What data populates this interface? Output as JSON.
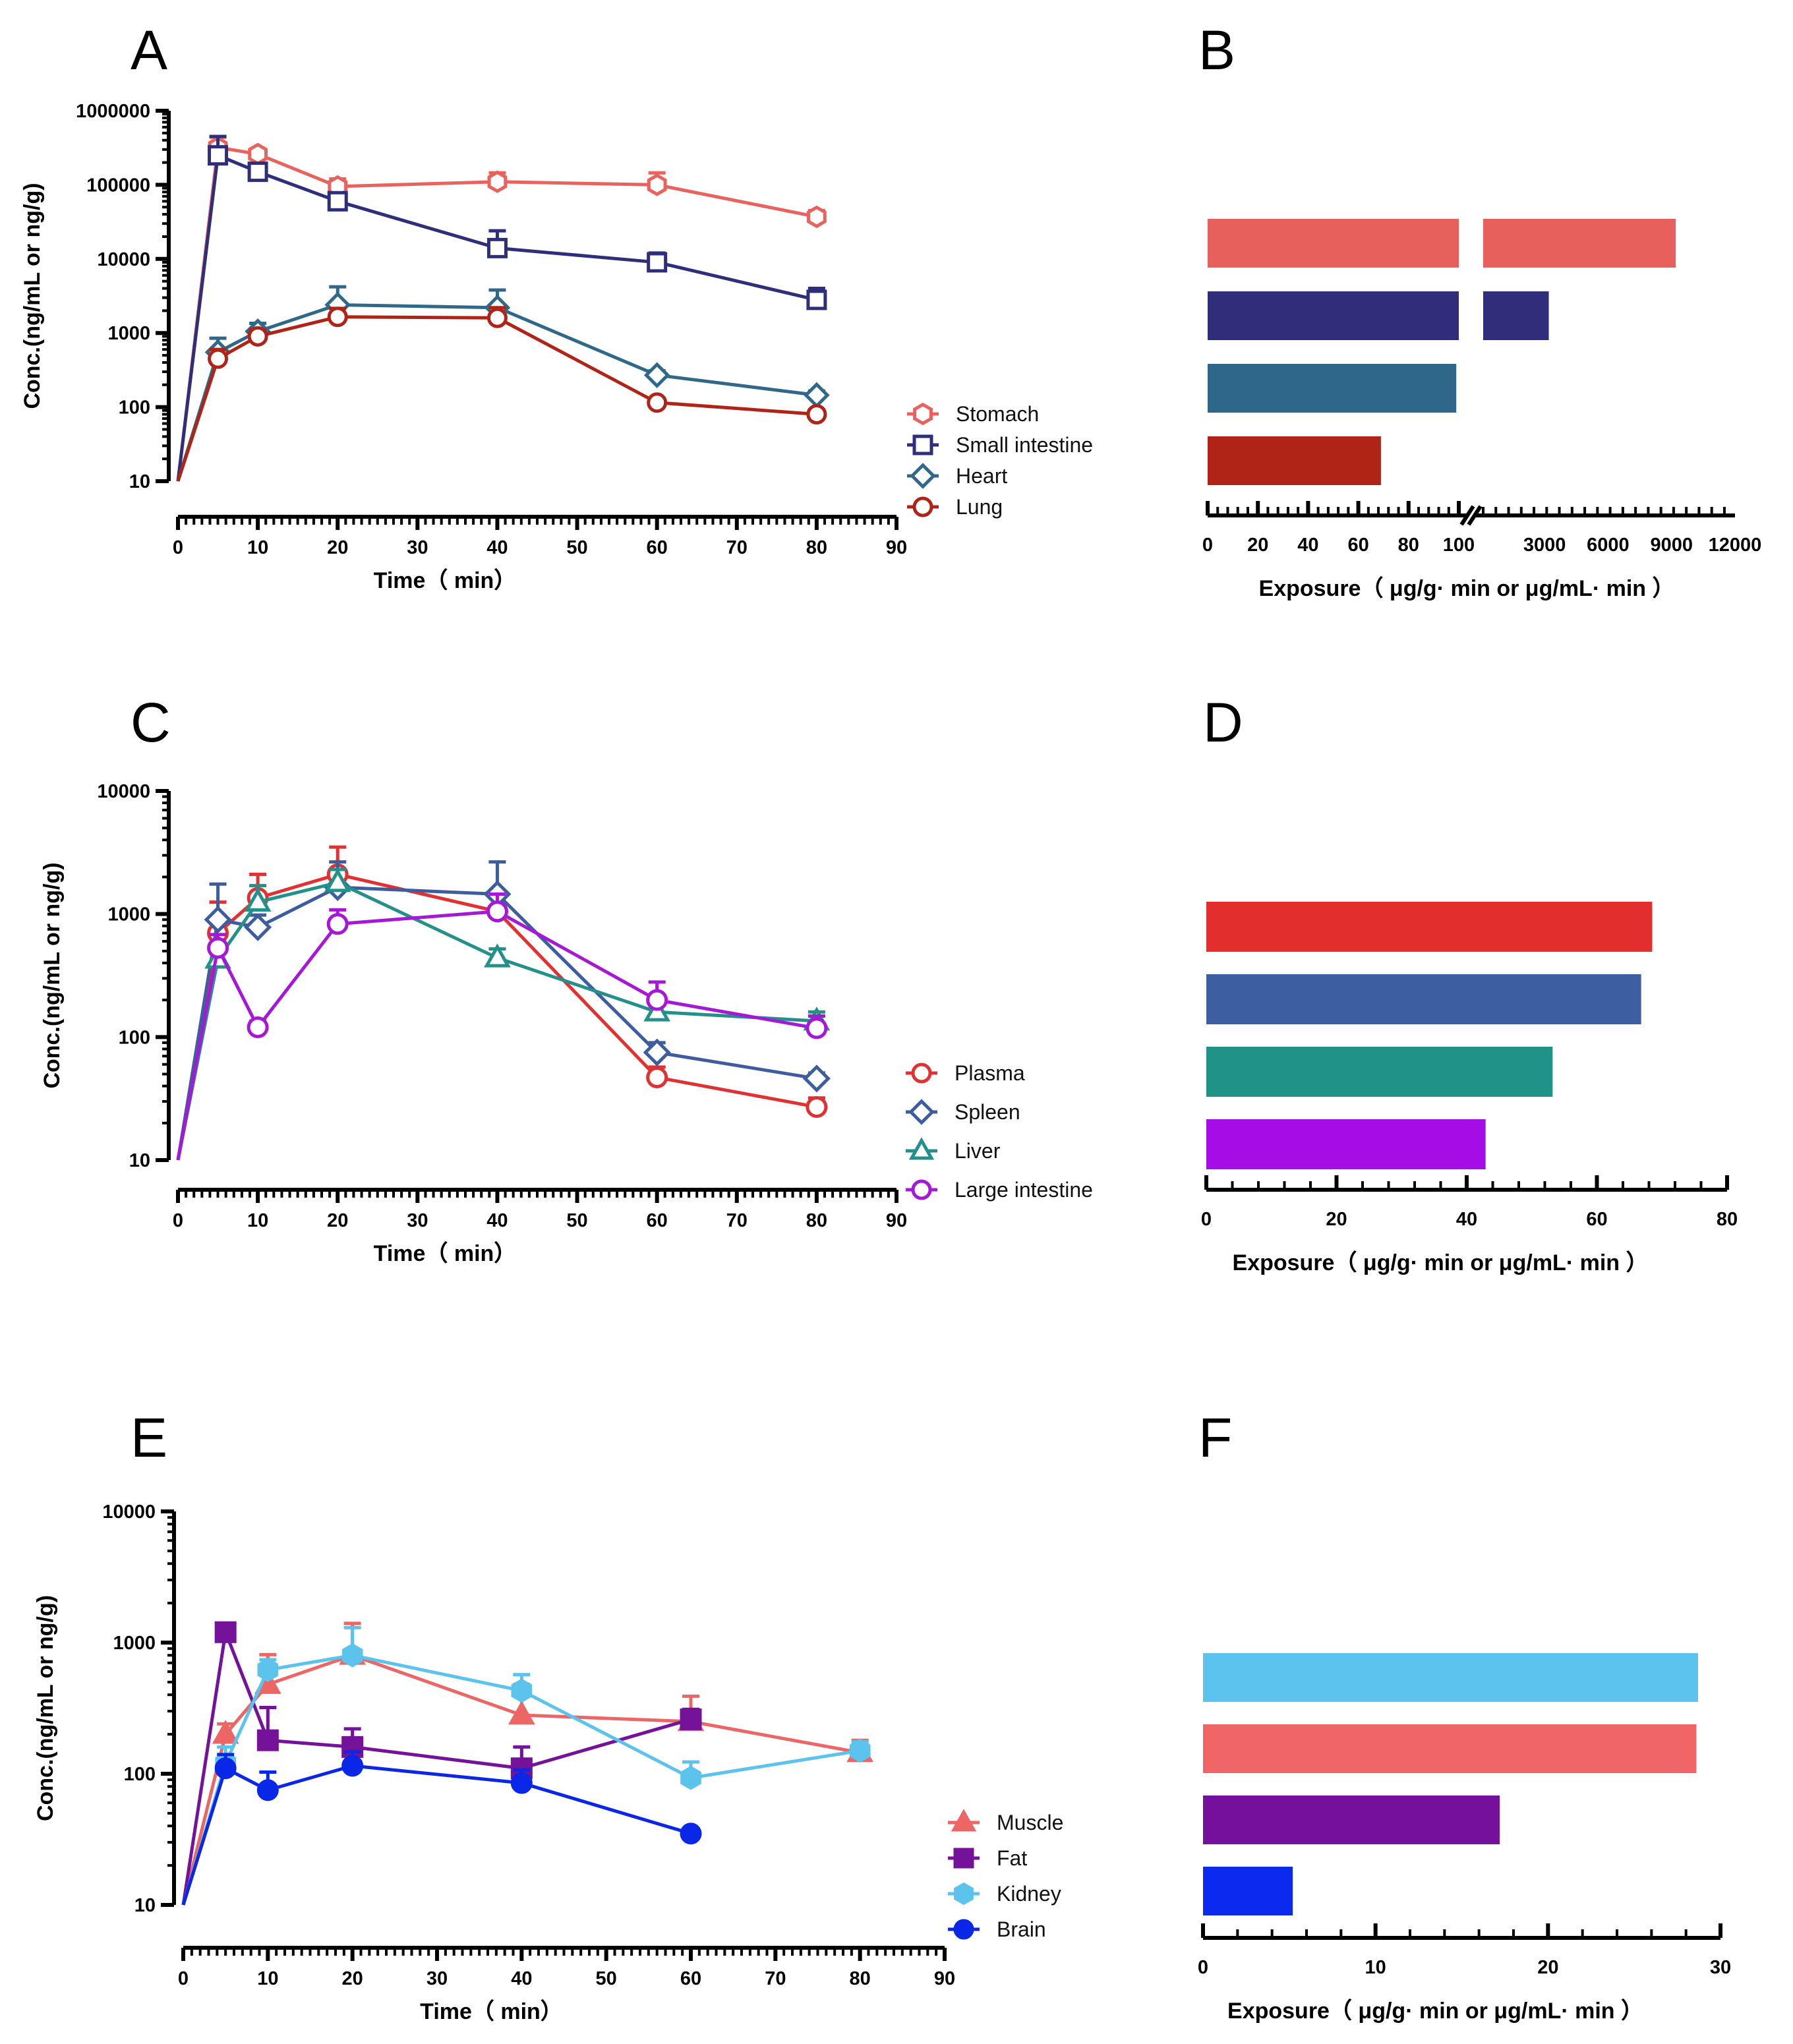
{
  "figure": {
    "panels": [
      {
        "id": "A",
        "label": "A"
      },
      {
        "id": "B",
        "label": "B"
      },
      {
        "id": "C",
        "label": "C"
      },
      {
        "id": "D",
        "label": "D"
      },
      {
        "id": "E",
        "label": "E"
      },
      {
        "id": "F",
        "label": "F"
      }
    ]
  },
  "chart_data": [
    {
      "panel": "A",
      "type": "line",
      "xscale": "linear",
      "yscale": "log",
      "xlabel": "Time（ min）",
      "ylabel": "Conc.(ng/mL or ng/g)",
      "xlim": [
        0,
        90
      ],
      "ylim": [
        10,
        1000000
      ],
      "xticks": [
        0,
        10,
        20,
        30,
        40,
        50,
        60,
        70,
        80,
        90
      ],
      "yticks": [
        10,
        100,
        1000,
        10000,
        100000,
        1000000
      ],
      "legend_position": "right-middle",
      "series": [
        {
          "name": "Stomach",
          "color": "#E8635E",
          "marker": "hexagon",
          "x": [
            0,
            5,
            10,
            20,
            40,
            60,
            80
          ],
          "y": [
            10,
            320000,
            260000,
            95000,
            110000,
            100000,
            37000
          ],
          "err": [
            0,
            120000,
            40000,
            25000,
            35000,
            45000,
            8000
          ]
        },
        {
          "name": "Small intestine",
          "color": "#2E2E7A",
          "marker": "square",
          "x": [
            0,
            5,
            10,
            20,
            40,
            60,
            80
          ],
          "y": [
            10,
            250000,
            150000,
            60000,
            14000,
            9000,
            2800
          ],
          "err": [
            0,
            200000,
            40000,
            15000,
            10000,
            3000,
            1200
          ]
        },
        {
          "name": "Heart",
          "color": "#2F6889",
          "marker": "diamond",
          "x": [
            0,
            5,
            10,
            20,
            40,
            60,
            80
          ],
          "y": [
            10,
            550,
            1050,
            2400,
            2200,
            270,
            145
          ],
          "err": [
            0,
            300,
            300,
            1800,
            1600,
            40,
            20
          ]
        },
        {
          "name": "Lung",
          "color": "#B02418",
          "marker": "circle",
          "x": [
            0,
            5,
            10,
            20,
            40,
            60,
            80
          ],
          "y": [
            10,
            450,
            900,
            1650,
            1600,
            115,
            80
          ],
          "err": [
            0,
            150,
            200,
            500,
            600,
            15,
            12
          ]
        }
      ]
    },
    {
      "panel": "B",
      "type": "bar",
      "orientation": "horizontal",
      "xlabel": "Exposure（ μg/g· min or μg/mL· min ）",
      "x_axis_break": true,
      "xticks_low": [
        0,
        20,
        40,
        60,
        80,
        100
      ],
      "xticks_high": [
        3000,
        6000,
        9000,
        12000
      ],
      "categories": [
        "Stomach",
        "Small intestine",
        "Heart",
        "Lung"
      ],
      "values": [
        9200,
        3200,
        99,
        69
      ],
      "colors": [
        "#E8605B",
        "#302E7A",
        "#2F678B",
        "#AF2417"
      ]
    },
    {
      "panel": "C",
      "type": "line",
      "xscale": "linear",
      "yscale": "log",
      "xlabel": "Time（ min）",
      "ylabel": "Conc.(ng/mL or ng/g)",
      "xlim": [
        0,
        90
      ],
      "ylim": [
        10,
        10000
      ],
      "xticks": [
        0,
        10,
        20,
        30,
        40,
        50,
        60,
        70,
        80,
        90
      ],
      "yticks": [
        10,
        100,
        1000,
        10000
      ],
      "legend_position": "right-middle",
      "series": [
        {
          "name": "Plasma",
          "color": "#E03232",
          "marker": "circle",
          "x": [
            0,
            5,
            10,
            20,
            40,
            60,
            80
          ],
          "y": [
            10,
            700,
            1350,
            2100,
            1050,
            47,
            27
          ],
          "err": [
            0,
            550,
            750,
            1400,
            400,
            10,
            5
          ]
        },
        {
          "name": "Spleen",
          "color": "#3D5D9E",
          "marker": "diamond",
          "x": [
            0,
            5,
            10,
            20,
            40,
            60,
            80
          ],
          "y": [
            10,
            900,
            780,
            1650,
            1450,
            75,
            46
          ],
          "err": [
            0,
            850,
            200,
            1000,
            1200,
            15,
            5
          ]
        },
        {
          "name": "Liver",
          "color": "#23908A",
          "marker": "triangle",
          "x": [
            0,
            5,
            10,
            20,
            40,
            60,
            80
          ],
          "y": [
            10,
            430,
            1250,
            1800,
            440,
            160,
            135
          ],
          "err": [
            0,
            90,
            450,
            500,
            80,
            30,
            25
          ]
        },
        {
          "name": "Large intestine",
          "color": "#A519D6",
          "marker": "circle",
          "x": [
            0,
            5,
            10,
            20,
            40,
            60,
            80
          ],
          "y": [
            10,
            530,
            120,
            830,
            1050,
            200,
            118
          ],
          "err": [
            0,
            150,
            15,
            250,
            400,
            80,
            30
          ]
        }
      ]
    },
    {
      "panel": "D",
      "type": "bar",
      "orientation": "horizontal",
      "xlabel": "Exposure（ μg/g· min or μg/mL· min ）",
      "xlim": [
        0,
        80
      ],
      "xticks": [
        0,
        20,
        40,
        60,
        80
      ],
      "categories": [
        "Plasma",
        "Spleen",
        "Liver",
        "Large intestine"
      ],
      "values": [
        68.5,
        66.8,
        53.2,
        42.9
      ],
      "colors": [
        "#E32E2E",
        "#3D5EA1",
        "#219287",
        "#A50DE6"
      ]
    },
    {
      "panel": "E",
      "type": "line",
      "xscale": "linear",
      "yscale": "log",
      "xlabel": "Time（ min）",
      "ylabel": "Conc.(ng/mL or ng/g)",
      "xlim": [
        0,
        90
      ],
      "ylim": [
        10,
        10000
      ],
      "xticks": [
        0,
        10,
        20,
        30,
        40,
        50,
        60,
        70,
        80,
        90
      ],
      "yticks": [
        10,
        100,
        1000,
        10000
      ],
      "legend_position": "right-bottom",
      "series": [
        {
          "name": "Muscle",
          "color": "#EC6666",
          "marker": "triangle-filled",
          "x": [
            0,
            5,
            10,
            20,
            40,
            60,
            80
          ],
          "y": [
            10,
            200,
            480,
            800,
            280,
            250,
            145
          ],
          "err": [
            0,
            40,
            330,
            600,
            200,
            140,
            35
          ]
        },
        {
          "name": "Fat",
          "color": "#74129A",
          "marker": "square-filled",
          "x": [
            0,
            5,
            10,
            20,
            40,
            60
          ],
          "y": [
            10,
            1200,
            180,
            160,
            110,
            260
          ],
          "err": [
            0,
            100,
            140,
            60,
            50,
            50
          ]
        },
        {
          "name": "Kidney",
          "color": "#5BC3EC",
          "marker": "hexagon-filled",
          "x": [
            0,
            5,
            10,
            20,
            40,
            60,
            80
          ],
          "y": [
            10,
            120,
            620,
            800,
            430,
            93,
            150
          ],
          "err": [
            0,
            40,
            120,
            500,
            140,
            30,
            25
          ]
        },
        {
          "name": "Brain",
          "color": "#0A26E6",
          "marker": "circle-filled",
          "x": [
            0,
            5,
            10,
            20,
            40,
            60
          ],
          "y": [
            10,
            110,
            75,
            115,
            85,
            35
          ],
          "err": [
            0,
            30,
            28,
            32,
            22,
            0
          ]
        }
      ]
    },
    {
      "panel": "F",
      "type": "bar",
      "orientation": "horizontal",
      "xlabel": "Exposure（ μg/g· min or μg/mL· min ）",
      "xlim": [
        0,
        30
      ],
      "xticks": [
        0,
        10,
        20,
        30
      ],
      "categories": [
        "Kidney",
        "Muscle",
        "Fat",
        "Brain"
      ],
      "values": [
        28.7,
        28.6,
        17.2,
        5.2
      ],
      "colors": [
        "#5BC3EE",
        "#F06666",
        "#74109C",
        "#0A2AF0"
      ]
    }
  ]
}
